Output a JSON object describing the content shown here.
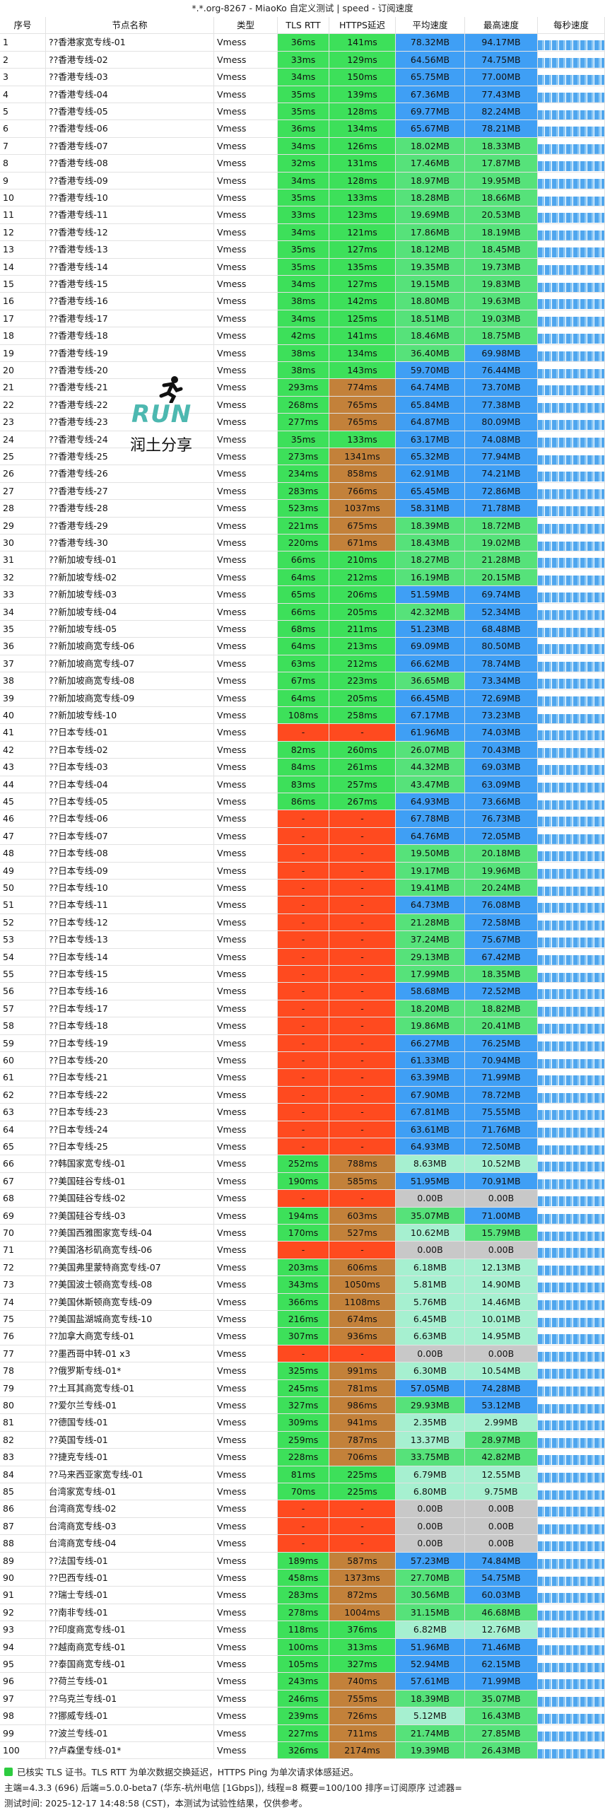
{
  "title": "*.*.org-8267 - MiaoKo 自定义测试 | speed - 订阅速度",
  "headers": [
    "序号",
    "节点名称",
    "类型",
    "TLS RTT",
    "HTTPS延迟",
    "平均速度",
    "最高速度",
    "每秒速度"
  ],
  "rows": [
    [
      "1",
      "??香港家宽专线-01",
      "Vmess",
      "36ms",
      "141ms",
      "78.32MB",
      "94.17MB"
    ],
    [
      "2",
      "??香港专线-02",
      "Vmess",
      "33ms",
      "129ms",
      "64.56MB",
      "74.75MB"
    ],
    [
      "3",
      "??香港专线-03",
      "Vmess",
      "34ms",
      "150ms",
      "65.75MB",
      "77.00MB"
    ],
    [
      "4",
      "??香港专线-04",
      "Vmess",
      "35ms",
      "139ms",
      "67.36MB",
      "77.43MB"
    ],
    [
      "5",
      "??香港专线-05",
      "Vmess",
      "35ms",
      "128ms",
      "69.77MB",
      "82.24MB"
    ],
    [
      "6",
      "??香港专线-06",
      "Vmess",
      "36ms",
      "134ms",
      "65.67MB",
      "78.21MB"
    ],
    [
      "7",
      "??香港专线-07",
      "Vmess",
      "34ms",
      "126ms",
      "18.02MB",
      "18.33MB"
    ],
    [
      "8",
      "??香港专线-08",
      "Vmess",
      "32ms",
      "131ms",
      "17.46MB",
      "17.87MB"
    ],
    [
      "9",
      "??香港专线-09",
      "Vmess",
      "34ms",
      "128ms",
      "18.97MB",
      "19.95MB"
    ],
    [
      "10",
      "??香港专线-10",
      "Vmess",
      "35ms",
      "133ms",
      "18.28MB",
      "18.66MB"
    ],
    [
      "11",
      "??香港专线-11",
      "Vmess",
      "33ms",
      "123ms",
      "19.69MB",
      "20.53MB"
    ],
    [
      "12",
      "??香港专线-12",
      "Vmess",
      "34ms",
      "121ms",
      "17.86MB",
      "18.19MB"
    ],
    [
      "13",
      "??香港专线-13",
      "Vmess",
      "35ms",
      "127ms",
      "18.12MB",
      "18.45MB"
    ],
    [
      "14",
      "??香港专线-14",
      "Vmess",
      "35ms",
      "135ms",
      "19.35MB",
      "19.73MB"
    ],
    [
      "15",
      "??香港专线-15",
      "Vmess",
      "34ms",
      "127ms",
      "19.15MB",
      "19.83MB"
    ],
    [
      "16",
      "??香港专线-16",
      "Vmess",
      "38ms",
      "142ms",
      "18.80MB",
      "19.63MB"
    ],
    [
      "17",
      "??香港专线-17",
      "Vmess",
      "34ms",
      "125ms",
      "18.51MB",
      "19.03MB"
    ],
    [
      "18",
      "??香港专线-18",
      "Vmess",
      "42ms",
      "141ms",
      "18.46MB",
      "18.75MB"
    ],
    [
      "19",
      "??香港专线-19",
      "Vmess",
      "38ms",
      "134ms",
      "36.40MB",
      "69.98MB"
    ],
    [
      "20",
      "??香港专线-20",
      "Vmess",
      "38ms",
      "143ms",
      "59.70MB",
      "76.44MB"
    ],
    [
      "21",
      "??香港专线-21",
      "Vmess",
      "293ms",
      "774ms",
      "64.74MB",
      "73.70MB"
    ],
    [
      "22",
      "??香港专线-22",
      "Vmess",
      "268ms",
      "765ms",
      "65.84MB",
      "77.38MB"
    ],
    [
      "23",
      "??香港专线-23",
      "Vmess",
      "277ms",
      "765ms",
      "64.87MB",
      "80.09MB"
    ],
    [
      "24",
      "??香港专线-24",
      "Vmess",
      "35ms",
      "133ms",
      "63.17MB",
      "74.08MB"
    ],
    [
      "25",
      "??香港专线-25",
      "Vmess",
      "273ms",
      "1341ms",
      "65.32MB",
      "77.94MB"
    ],
    [
      "26",
      "??香港专线-26",
      "Vmess",
      "234ms",
      "858ms",
      "62.91MB",
      "74.21MB"
    ],
    [
      "27",
      "??香港专线-27",
      "Vmess",
      "283ms",
      "766ms",
      "65.45MB",
      "72.86MB"
    ],
    [
      "28",
      "??香港专线-28",
      "Vmess",
      "523ms",
      "1037ms",
      "58.31MB",
      "71.78MB"
    ],
    [
      "29",
      "??香港专线-29",
      "Vmess",
      "221ms",
      "675ms",
      "18.39MB",
      "18.72MB"
    ],
    [
      "30",
      "??香港专线-30",
      "Vmess",
      "220ms",
      "671ms",
      "18.43MB",
      "19.02MB"
    ],
    [
      "31",
      "??新加坡专线-01",
      "Vmess",
      "66ms",
      "210ms",
      "18.27MB",
      "21.28MB"
    ],
    [
      "32",
      "??新加坡专线-02",
      "Vmess",
      "64ms",
      "212ms",
      "16.19MB",
      "20.15MB"
    ],
    [
      "33",
      "??新加坡专线-03",
      "Vmess",
      "65ms",
      "206ms",
      "51.59MB",
      "69.74MB"
    ],
    [
      "34",
      "??新加坡专线-04",
      "Vmess",
      "66ms",
      "205ms",
      "42.32MB",
      "52.34MB"
    ],
    [
      "35",
      "??新加坡专线-05",
      "Vmess",
      "68ms",
      "211ms",
      "51.23MB",
      "68.48MB"
    ],
    [
      "36",
      "??新加坡商宽专线-06",
      "Vmess",
      "64ms",
      "213ms",
      "69.09MB",
      "80.50MB"
    ],
    [
      "37",
      "??新加坡商宽专线-07",
      "Vmess",
      "63ms",
      "212ms",
      "66.62MB",
      "78.74MB"
    ],
    [
      "38",
      "??新加坡商宽专线-08",
      "Vmess",
      "67ms",
      "223ms",
      "36.65MB",
      "73.34MB"
    ],
    [
      "39",
      "??新加坡商宽专线-09",
      "Vmess",
      "64ms",
      "205ms",
      "66.45MB",
      "72.69MB"
    ],
    [
      "40",
      "??新加坡专线-10",
      "Vmess",
      "108ms",
      "258ms",
      "67.17MB",
      "73.23MB"
    ],
    [
      "41",
      "??日本专线-01",
      "Vmess",
      "-",
      "-",
      "61.96MB",
      "74.03MB"
    ],
    [
      "42",
      "??日本专线-02",
      "Vmess",
      "82ms",
      "260ms",
      "26.07MB",
      "70.43MB"
    ],
    [
      "43",
      "??日本专线-03",
      "Vmess",
      "84ms",
      "261ms",
      "44.32MB",
      "69.03MB"
    ],
    [
      "44",
      "??日本专线-04",
      "Vmess",
      "83ms",
      "257ms",
      "43.47MB",
      "63.09MB"
    ],
    [
      "45",
      "??日本专线-05",
      "Vmess",
      "86ms",
      "267ms",
      "64.93MB",
      "73.66MB"
    ],
    [
      "46",
      "??日本专线-06",
      "Vmess",
      "-",
      "-",
      "67.78MB",
      "76.73MB"
    ],
    [
      "47",
      "??日本专线-07",
      "Vmess",
      "-",
      "-",
      "64.76MB",
      "72.05MB"
    ],
    [
      "48",
      "??日本专线-08",
      "Vmess",
      "-",
      "-",
      "19.50MB",
      "20.18MB"
    ],
    [
      "49",
      "??日本专线-09",
      "Vmess",
      "-",
      "-",
      "19.17MB",
      "19.96MB"
    ],
    [
      "50",
      "??日本专线-10",
      "Vmess",
      "-",
      "-",
      "19.41MB",
      "20.24MB"
    ],
    [
      "51",
      "??日本专线-11",
      "Vmess",
      "-",
      "-",
      "64.73MB",
      "76.08MB"
    ],
    [
      "52",
      "??日本专线-12",
      "Vmess",
      "-",
      "-",
      "21.28MB",
      "72.58MB"
    ],
    [
      "53",
      "??日本专线-13",
      "Vmess",
      "-",
      "-",
      "37.24MB",
      "75.67MB"
    ],
    [
      "54",
      "??日本专线-14",
      "Vmess",
      "-",
      "-",
      "29.13MB",
      "67.42MB"
    ],
    [
      "55",
      "??日本专线-15",
      "Vmess",
      "-",
      "-",
      "17.99MB",
      "18.35MB"
    ],
    [
      "56",
      "??日本专线-16",
      "Vmess",
      "-",
      "-",
      "58.68MB",
      "72.52MB"
    ],
    [
      "57",
      "??日本专线-17",
      "Vmess",
      "-",
      "-",
      "18.20MB",
      "18.82MB"
    ],
    [
      "58",
      "??日本专线-18",
      "Vmess",
      "-",
      "-",
      "19.86MB",
      "20.41MB"
    ],
    [
      "59",
      "??日本专线-19",
      "Vmess",
      "-",
      "-",
      "66.27MB",
      "76.25MB"
    ],
    [
      "60",
      "??日本专线-20",
      "Vmess",
      "-",
      "-",
      "61.33MB",
      "70.94MB"
    ],
    [
      "61",
      "??日本专线-21",
      "Vmess",
      "-",
      "-",
      "63.39MB",
      "71.99MB"
    ],
    [
      "62",
      "??日本专线-22",
      "Vmess",
      "-",
      "-",
      "67.90MB",
      "78.72MB"
    ],
    [
      "63",
      "??日本专线-23",
      "Vmess",
      "-",
      "-",
      "67.81MB",
      "75.55MB"
    ],
    [
      "64",
      "??日本专线-24",
      "Vmess",
      "-",
      "-",
      "63.61MB",
      "71.76MB"
    ],
    [
      "65",
      "??日本专线-25",
      "Vmess",
      "-",
      "-",
      "64.93MB",
      "72.50MB"
    ],
    [
      "66",
      "??韩国家宽专线-01",
      "Vmess",
      "252ms",
      "788ms",
      "8.63MB",
      "10.52MB"
    ],
    [
      "67",
      "??美国硅谷专线-01",
      "Vmess",
      "190ms",
      "585ms",
      "51.95MB",
      "70.91MB"
    ],
    [
      "68",
      "??美国硅谷专线-02",
      "Vmess",
      "-",
      "-",
      "0.00B",
      "0.00B"
    ],
    [
      "69",
      "??美国硅谷专线-03",
      "Vmess",
      "194ms",
      "603ms",
      "35.07MB",
      "71.00MB"
    ],
    [
      "70",
      "??美国西雅图家宽专线-04",
      "Vmess",
      "170ms",
      "527ms",
      "10.62MB",
      "15.79MB"
    ],
    [
      "71",
      "??美国洛杉矶商宽专线-06",
      "Vmess",
      "-",
      "-",
      "0.00B",
      "0.00B"
    ],
    [
      "72",
      "??美国弗里蒙特商宽专线-07",
      "Vmess",
      "203ms",
      "606ms",
      "6.18MB",
      "12.13MB"
    ],
    [
      "73",
      "??美国波士顿商宽专线-08",
      "Vmess",
      "343ms",
      "1050ms",
      "5.81MB",
      "14.90MB"
    ],
    [
      "74",
      "??美国休斯顿商宽专线-09",
      "Vmess",
      "366ms",
      "1108ms",
      "5.76MB",
      "14.46MB"
    ],
    [
      "75",
      "??美国盐湖城商宽专线-10",
      "Vmess",
      "216ms",
      "674ms",
      "6.45MB",
      "10.01MB"
    ],
    [
      "76",
      "??加拿大商宽专线-01",
      "Vmess",
      "307ms",
      "936ms",
      "6.63MB",
      "14.95MB"
    ],
    [
      "77",
      "??墨西哥中转-01 x3",
      "Vmess",
      "-",
      "-",
      "0.00B",
      "0.00B"
    ],
    [
      "78",
      "??俄罗斯专线-01*",
      "Vmess",
      "325ms",
      "991ms",
      "6.30MB",
      "10.54MB"
    ],
    [
      "79",
      "??土耳其商宽专线-01",
      "Vmess",
      "245ms",
      "781ms",
      "57.05MB",
      "74.28MB"
    ],
    [
      "80",
      "??爱尔兰专线-01",
      "Vmess",
      "327ms",
      "986ms",
      "29.93MB",
      "53.12MB"
    ],
    [
      "81",
      "??德国专线-01",
      "Vmess",
      "309ms",
      "941ms",
      "2.35MB",
      "2.99MB"
    ],
    [
      "82",
      "??英国专线-01",
      "Vmess",
      "259ms",
      "787ms",
      "13.37MB",
      "28.97MB"
    ],
    [
      "83",
      "??捷克专线-01",
      "Vmess",
      "228ms",
      "706ms",
      "33.75MB",
      "42.82MB"
    ],
    [
      "84",
      "??马来西亚家宽专线-01",
      "Vmess",
      "81ms",
      "225ms",
      "6.79MB",
      "12.55MB"
    ],
    [
      "85",
      "台湾家宽专线-01",
      "Vmess",
      "70ms",
      "225ms",
      "6.80MB",
      "9.75MB"
    ],
    [
      "86",
      "台湾商宽专线-02",
      "Vmess",
      "-",
      "-",
      "0.00B",
      "0.00B"
    ],
    [
      "87",
      "台湾商宽专线-03",
      "Vmess",
      "-",
      "-",
      "0.00B",
      "0.00B"
    ],
    [
      "88",
      "台湾商宽专线-04",
      "Vmess",
      "-",
      "-",
      "0.00B",
      "0.00B"
    ],
    [
      "89",
      "??法国专线-01",
      "Vmess",
      "189ms",
      "587ms",
      "57.23MB",
      "74.84MB"
    ],
    [
      "90",
      "??巴西专线-01",
      "Vmess",
      "458ms",
      "1373ms",
      "27.70MB",
      "54.75MB"
    ],
    [
      "91",
      "??瑞士专线-01",
      "Vmess",
      "283ms",
      "872ms",
      "30.56MB",
      "60.03MB"
    ],
    [
      "92",
      "??南非专线-01",
      "Vmess",
      "278ms",
      "1004ms",
      "31.15MB",
      "46.68MB"
    ],
    [
      "93",
      "??印度商宽专线-01",
      "Vmess",
      "118ms",
      "376ms",
      "6.82MB",
      "12.76MB"
    ],
    [
      "94",
      "??越南商宽专线-01",
      "Vmess",
      "100ms",
      "313ms",
      "51.96MB",
      "71.46MB"
    ],
    [
      "95",
      "??泰国商宽专线-01",
      "Vmess",
      "105ms",
      "327ms",
      "52.94MB",
      "62.15MB"
    ],
    [
      "96",
      "??荷兰专线-01",
      "Vmess",
      "243ms",
      "740ms",
      "57.61MB",
      "71.99MB"
    ],
    [
      "97",
      "??乌克兰专线-01",
      "Vmess",
      "246ms",
      "755ms",
      "18.39MB",
      "35.07MB"
    ],
    [
      "98",
      "??挪威专线-01",
      "Vmess",
      "239ms",
      "726ms",
      "5.12MB",
      "16.43MB"
    ],
    [
      "99",
      "??波兰专线-01",
      "Vmess",
      "227ms",
      "711ms",
      "21.74MB",
      "27.85MB"
    ],
    [
      "100",
      "??卢森堡专线-01*",
      "Vmess",
      "326ms",
      "2174ms",
      "19.39MB",
      "26.43MB"
    ]
  ],
  "logo": {
    "mark": "RUN",
    "text": "润土分享"
  },
  "footer": [
    "已核实 TLS 证书。TLS RTT 为单次数据交换延迟，HTTPS Ping 为单次请求体感延迟。",
    "主端=4.3.3 (696) 后端=5.0.0-beta7 (华东-杭州电信 [1Gbps]), 线程=8 概要=100/100 排序=订阅原序 过滤器=",
    "测试时间: 2025-12-17 14:48:58 (CST)，本测试为试验性结果，仅供参考。"
  ]
}
